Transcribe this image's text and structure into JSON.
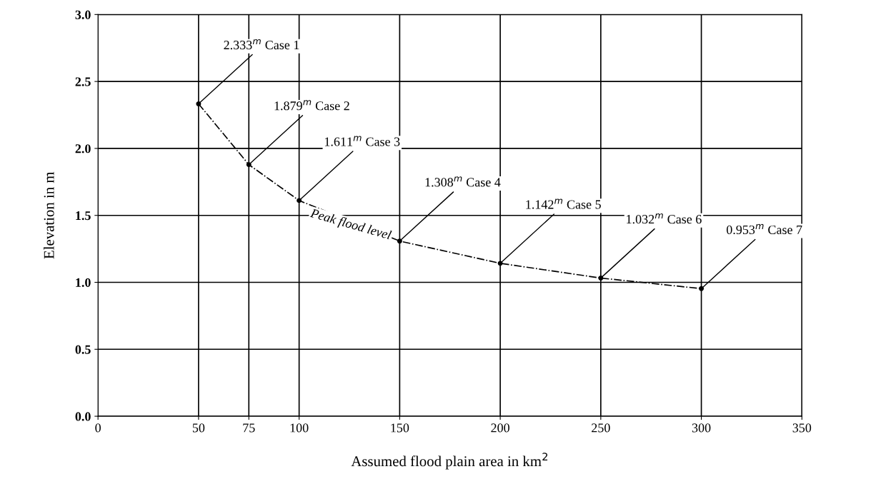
{
  "chart_data": {
    "type": "line",
    "xlabel": "Assumed flood plain area in km$^{2}$",
    "ylabel": "Elevation in m",
    "x": [
      50,
      75,
      100,
      150,
      200,
      250,
      300
    ],
    "series": [
      {
        "color": "#000000",
        "values": [
          2.333,
          1.879,
          1.611,
          1.308,
          1.142,
          1.032,
          0.953
        ]
      }
    ],
    "marker": "circle",
    "line_style": "dashed",
    "grid": true,
    "xlim": [
      0,
      350
    ],
    "xticks": [
      0,
      50,
      75,
      100,
      150,
      200,
      250,
      300,
      350
    ],
    "ylim": [
      0,
      3
    ],
    "yticks": [
      {
        "value": 0,
        "label": "0.0"
      },
      {
        "value": 0.5,
        "label": "0.5"
      },
      {
        "value": 1,
        "label": "1.0"
      },
      {
        "value": 1.5,
        "label": "1.5"
      },
      {
        "value": 2,
        "label": "2.0"
      },
      {
        "value": 2.5,
        "label": "2.5"
      },
      {
        "value": 3,
        "label": "3.0"
      }
    ],
    "annotations": [
      {
        "text": "2.333$^{m}$ Case 1",
        "x": 50,
        "y": 2.333
      },
      {
        "text": "1.879$^{m}$ Case 2",
        "x": 75,
        "y": 1.879
      },
      {
        "text": "1.611$^{m}$ Case 3",
        "x": 100,
        "y": 1.611
      },
      {
        "text": "1.308$^{m}$ Case 4",
        "x": 150,
        "y": 1.308
      },
      {
        "text": "1.142$^{m}$ Case 5",
        "x": 200,
        "y": 1.142
      },
      {
        "text": "1.032$^{m}$ Case 6",
        "x": 250,
        "y": 1.032
      },
      {
        "text": "0.953$^{m}$ Case 7",
        "x": 300,
        "y": 0.953
      },
      "Peak flood level"
    ]
  }
}
